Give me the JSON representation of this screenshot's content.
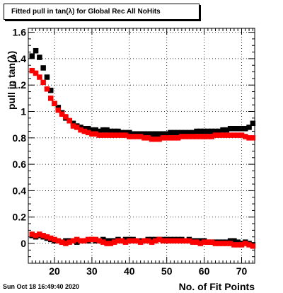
{
  "chart_data": {
    "type": "scatter",
    "title": "Fitted pull in tan(λ) for Global Rec All NoHits",
    "xlabel": "No. of Fit Points",
    "ylabel": "pull in tan(λ)",
    "xlim": [
      13,
      73.5
    ],
    "ylim": [
      -0.15,
      1.63
    ],
    "xticks": [
      20,
      30,
      40,
      50,
      60,
      70
    ],
    "yticks": [
      0,
      0.2,
      0.4,
      0.6,
      0.8,
      1,
      1.2,
      1.4,
      1.6
    ],
    "grid": true,
    "series": [
      {
        "color": "#000000",
        "marker": "square",
        "x": [
          14,
          15,
          16,
          17,
          18,
          19,
          20,
          21,
          22,
          23,
          24,
          25,
          26,
          27,
          28,
          29,
          30,
          31,
          32,
          33,
          34,
          35,
          36,
          37,
          38,
          39,
          40,
          41,
          42,
          43,
          44,
          45,
          46,
          47,
          48,
          49,
          50,
          51,
          52,
          53,
          54,
          55,
          56,
          57,
          58,
          59,
          60,
          61,
          62,
          63,
          64,
          65,
          66,
          67,
          68,
          69,
          70,
          71,
          72,
          73
        ],
        "y": [
          1.42,
          1.46,
          1.41,
          1.33,
          1.26,
          1.16,
          1.06,
          1.03,
          0.99,
          0.95,
          0.93,
          0.91,
          0.89,
          0.88,
          0.87,
          0.87,
          0.86,
          0.86,
          0.85,
          0.86,
          0.86,
          0.85,
          0.85,
          0.85,
          0.84,
          0.84,
          0.84,
          0.83,
          0.83,
          0.83,
          0.83,
          0.83,
          0.83,
          0.83,
          0.83,
          0.83,
          0.83,
          0.84,
          0.84,
          0.84,
          0.84,
          0.84,
          0.84,
          0.84,
          0.85,
          0.85,
          0.85,
          0.85,
          0.85,
          0.85,
          0.85,
          0.86,
          0.86,
          0.87,
          0.87,
          0.87,
          0.87,
          0.87,
          0.88,
          0.91
        ]
      },
      {
        "color": "#ff0000",
        "marker": "square",
        "x": [
          14,
          15,
          16,
          17,
          18,
          19,
          20,
          21,
          22,
          23,
          24,
          25,
          26,
          27,
          28,
          29,
          30,
          31,
          32,
          33,
          34,
          35,
          36,
          37,
          38,
          39,
          40,
          41,
          42,
          43,
          44,
          45,
          46,
          47,
          48,
          49,
          50,
          51,
          52,
          53,
          54,
          55,
          56,
          57,
          58,
          59,
          60,
          61,
          62,
          63,
          64,
          65,
          66,
          67,
          68,
          69,
          70,
          71,
          72,
          73
        ],
        "y": [
          1.31,
          1.29,
          1.26,
          1.22,
          1.17,
          1.1,
          1.06,
          1.01,
          0.98,
          0.96,
          0.93,
          0.89,
          0.88,
          0.86,
          0.85,
          0.84,
          0.83,
          0.83,
          0.82,
          0.82,
          0.82,
          0.82,
          0.82,
          0.82,
          0.82,
          0.82,
          0.81,
          0.81,
          0.81,
          0.81,
          0.8,
          0.8,
          0.79,
          0.79,
          0.79,
          0.8,
          0.8,
          0.8,
          0.8,
          0.8,
          0.81,
          0.81,
          0.81,
          0.81,
          0.81,
          0.81,
          0.81,
          0.81,
          0.81,
          0.82,
          0.82,
          0.82,
          0.82,
          0.82,
          0.82,
          0.82,
          0.82,
          0.81,
          0.8,
          0.8
        ]
      },
      {
        "color": "#000000",
        "marker": "square",
        "x": [
          14,
          15,
          16,
          17,
          18,
          19,
          20,
          21,
          22,
          23,
          24,
          25,
          26,
          27,
          28,
          29,
          30,
          31,
          32,
          33,
          34,
          35,
          36,
          37,
          38,
          39,
          40,
          41,
          42,
          43,
          44,
          45,
          46,
          47,
          48,
          49,
          50,
          51,
          52,
          53,
          54,
          55,
          56,
          57,
          58,
          59,
          60,
          61,
          62,
          63,
          64,
          65,
          66,
          67,
          68,
          69,
          70,
          71,
          72,
          73
        ],
        "y": [
          0.06,
          0.05,
          0.06,
          0.05,
          0.04,
          0.03,
          0.02,
          0.02,
          0.01,
          0.02,
          0.02,
          0.02,
          0.01,
          0.02,
          0.02,
          0.02,
          0.03,
          0.02,
          0.02,
          0.03,
          0.02,
          0.02,
          0.02,
          0.03,
          0.02,
          0.03,
          0.03,
          0.03,
          0.02,
          0.02,
          0.02,
          0.03,
          0.03,
          0.03,
          0.03,
          0.03,
          0.03,
          0.03,
          0.03,
          0.03,
          0.03,
          0.02,
          0.03,
          0.02,
          0.02,
          0.02,
          0.02,
          0.01,
          0.01,
          0.01,
          0.01,
          0.01,
          0.01,
          0.02,
          0.02,
          0.01,
          0.0,
          0.01,
          0.0,
          -0.01
        ]
      },
      {
        "color": "#ff0000",
        "marker": "square",
        "x": [
          14,
          15,
          16,
          17,
          18,
          19,
          20,
          21,
          22,
          23,
          24,
          25,
          26,
          27,
          28,
          29,
          30,
          31,
          32,
          33,
          34,
          35,
          36,
          37,
          38,
          39,
          40,
          41,
          42,
          43,
          44,
          45,
          46,
          47,
          48,
          49,
          50,
          51,
          52,
          53,
          54,
          55,
          56,
          57,
          58,
          59,
          60,
          61,
          62,
          63,
          64,
          65,
          66,
          67,
          68,
          69,
          70,
          71,
          72,
          73
        ],
        "y": [
          0.07,
          0.06,
          0.07,
          0.06,
          0.05,
          0.04,
          0.03,
          0.02,
          0.01,
          0.0,
          0.01,
          0.02,
          0.03,
          0.02,
          0.02,
          0.03,
          0.03,
          0.03,
          0.02,
          0.01,
          0.0,
          0.0,
          0.01,
          0.02,
          0.02,
          0.01,
          0.02,
          0.02,
          0.02,
          0.01,
          0.02,
          0.02,
          0.01,
          0.02,
          0.03,
          0.02,
          0.02,
          0.02,
          0.02,
          0.02,
          0.02,
          0.02,
          0.02,
          0.01,
          0.01,
          0.0,
          0.01,
          0.01,
          0.01,
          0.0,
          0.0,
          0.0,
          0.0,
          0.0,
          -0.01,
          -0.01,
          -0.01,
          0.0,
          -0.01,
          -0.02
        ]
      }
    ]
  },
  "stamp": "Sun Oct 18 16:49:40 2020"
}
